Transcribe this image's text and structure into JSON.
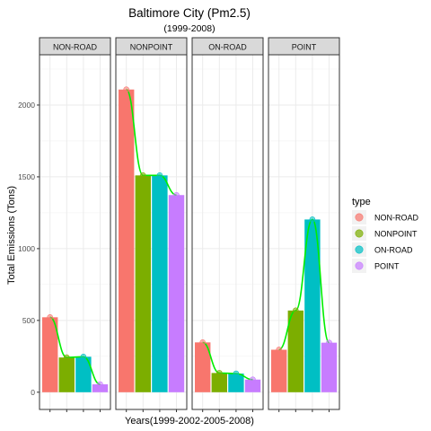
{
  "chart_data": {
    "type": "bar",
    "title": "Baltimore City (Pm2.5)",
    "subtitle": "(1999-2008)",
    "xlabel": "Years(1999-2002-2005-2008)",
    "ylabel": "Total Emissions (Tons)",
    "ylim": [
      -120,
      2350
    ],
    "y_ticks": [
      0,
      500,
      1000,
      1500,
      2000
    ],
    "grid": true,
    "years": [
      1999,
      2002,
      2005,
      2008
    ],
    "legend": {
      "title": "type",
      "placement": "right",
      "entries": [
        "NON-ROAD",
        "NONPOINT",
        "ON-ROAD",
        "POINT"
      ]
    },
    "bar_colors": [
      "#F8766D",
      "#7CAE00",
      "#00BFC4",
      "#C77CFF"
    ],
    "smooth_color": "#00EE00",
    "panels": [
      {
        "label": "NON-ROAD",
        "values": [
          522,
          242,
          247,
          55
        ]
      },
      {
        "label": "NONPOINT",
        "values": [
          2108,
          1510,
          1510,
          1373
        ]
      },
      {
        "label": "ON-ROAD",
        "values": [
          347,
          134,
          130,
          88
        ]
      },
      {
        "label": "POINT",
        "values": [
          296,
          569,
          1203,
          345
        ]
      }
    ]
  }
}
